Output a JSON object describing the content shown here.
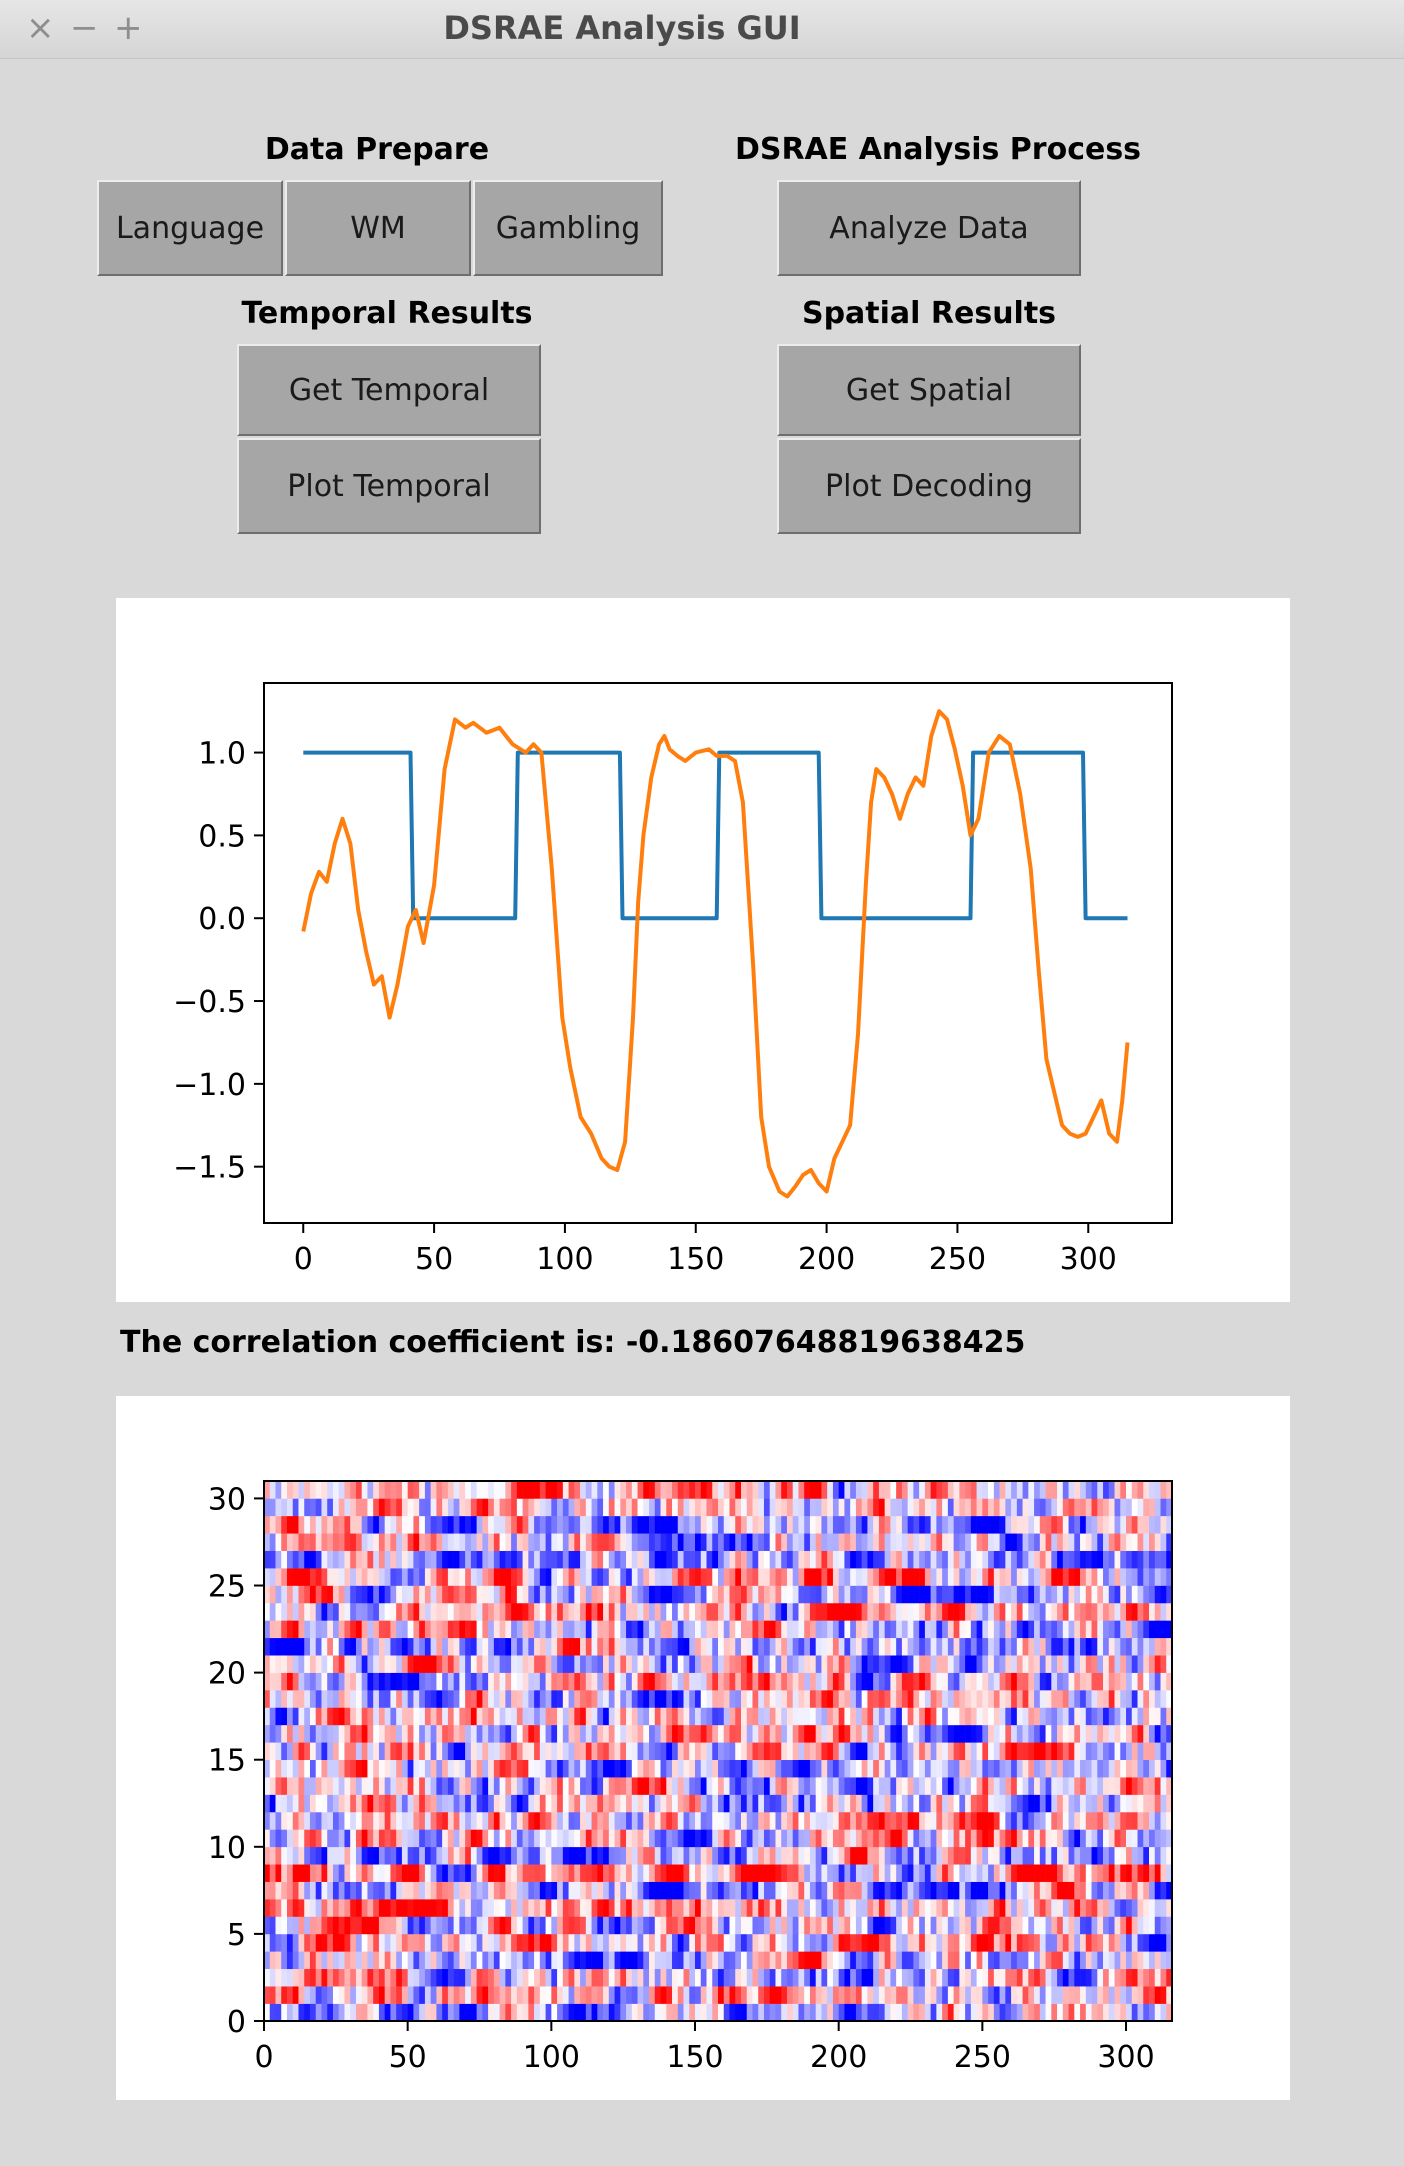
{
  "window": {
    "title": "DSRAE Analysis GUI",
    "close_glyph": "×",
    "minimize_glyph": "−",
    "maximize_glyph": "+"
  },
  "data_prepare": {
    "label": "Data Prepare",
    "buttons": [
      "Language",
      "WM",
      "Gambling"
    ]
  },
  "analysis_process": {
    "label": "DSRAE Analysis Process",
    "analyze_label": "Analyze Data"
  },
  "temporal_results": {
    "label": "Temporal Results",
    "get_label": "Get Temporal",
    "plot_label": "Plot Temporal"
  },
  "spatial_results": {
    "label": "Spatial Results",
    "get_label": "Get Spatial",
    "plot_label": "Plot Decoding"
  },
  "correlation": {
    "text": "The correlation coefficient is: -0.18607648819638425"
  },
  "colors": {
    "series_blue": "#1f77b4",
    "series_orange": "#ff7f0e",
    "button_face": "#a6a6a6",
    "window_bg": "#d9d9d9"
  },
  "chart_data": [
    {
      "type": "line",
      "xlim": [
        -15,
        332
      ],
      "ylim": [
        -1.84,
        1.42
      ],
      "xticks": [
        0,
        50,
        100,
        150,
        200,
        250,
        300
      ],
      "xtick_labels": [
        "0",
        "50",
        "100",
        "150",
        "200",
        "250",
        "300"
      ],
      "yticks": [
        1.0,
        0.5,
        0.0,
        -0.5,
        -1.0,
        -1.5
      ],
      "ytick_labels": [
        "1.0",
        "0.5",
        "0.0",
        "−0.5",
        "−1.0",
        "−1.5"
      ],
      "grid": false,
      "series": [
        {
          "color": "#1f77b4",
          "x": [
            0,
            41,
            42,
            81,
            82,
            121,
            122,
            158,
            159,
            197,
            198,
            255,
            256,
            298,
            299,
            315
          ],
          "y": [
            1,
            1,
            0,
            0,
            1,
            1,
            0,
            0,
            1,
            1,
            0,
            0,
            1,
            1,
            0,
            0
          ]
        },
        {
          "color": "#ff7f0e",
          "x": [
            0,
            3,
            6,
            9,
            12,
            15,
            18,
            21,
            24,
            27,
            30,
            33,
            36,
            40,
            43,
            46,
            50,
            54,
            58,
            62,
            65,
            70,
            75,
            80,
            85,
            88,
            91,
            95,
            99,
            102,
            104,
            106,
            110,
            114,
            117,
            120,
            123,
            126,
            128,
            130,
            133,
            136,
            138,
            140,
            143,
            146,
            150,
            155,
            158,
            162,
            165,
            168,
            172,
            175,
            178,
            182,
            185,
            188,
            191,
            194,
            197,
            200,
            203,
            206,
            209,
            212,
            215,
            217,
            219,
            222,
            225,
            228,
            231,
            234,
            237,
            240,
            243,
            246,
            249,
            252,
            255,
            258,
            262,
            266,
            270,
            274,
            278,
            281,
            284,
            287,
            290,
            293,
            296,
            299,
            302,
            305,
            308,
            311,
            313,
            315
          ],
          "y": [
            -0.08,
            0.15,
            0.28,
            0.22,
            0.45,
            0.6,
            0.45,
            0.05,
            -0.2,
            -0.4,
            -0.35,
            -0.6,
            -0.4,
            -0.05,
            0.05,
            -0.15,
            0.2,
            0.9,
            1.2,
            1.15,
            1.18,
            1.12,
            1.15,
            1.05,
            1.0,
            1.05,
            1.0,
            0.3,
            -0.6,
            -0.9,
            -1.05,
            -1.2,
            -1.3,
            -1.45,
            -1.5,
            -1.52,
            -1.35,
            -0.6,
            0.1,
            0.5,
            0.85,
            1.05,
            1.1,
            1.02,
            0.98,
            0.95,
            1.0,
            1.02,
            0.98,
            0.98,
            0.95,
            0.7,
            -0.3,
            -1.2,
            -1.5,
            -1.65,
            -1.68,
            -1.62,
            -1.55,
            -1.52,
            -1.6,
            -1.65,
            -1.45,
            -1.35,
            -1.25,
            -0.7,
            0.2,
            0.7,
            0.9,
            0.85,
            0.75,
            0.6,
            0.75,
            0.85,
            0.8,
            1.1,
            1.25,
            1.2,
            1.02,
            0.8,
            0.5,
            0.6,
            1.0,
            1.1,
            1.05,
            0.75,
            0.3,
            -0.3,
            -0.85,
            -1.05,
            -1.25,
            -1.3,
            -1.32,
            -1.3,
            -1.2,
            -1.1,
            -1.3,
            -1.35,
            -1.1,
            -0.75
          ]
        }
      ]
    },
    {
      "type": "heatmap",
      "rows": 31,
      "cols": 316,
      "xlim": [
        0,
        316
      ],
      "ylim": [
        0,
        31
      ],
      "xticks": [
        0,
        50,
        100,
        150,
        200,
        250,
        300
      ],
      "xtick_labels": [
        "0",
        "50",
        "100",
        "150",
        "200",
        "250",
        "300"
      ],
      "yticks": [
        0,
        5,
        10,
        15,
        20,
        25,
        30
      ],
      "ytick_labels": [
        "0",
        "5",
        "10",
        "15",
        "20",
        "25",
        "30"
      ],
      "colormap": "bwr",
      "color_low": "#0000ff",
      "color_mid": "#ffffff",
      "color_high": "#ff0000"
    }
  ]
}
